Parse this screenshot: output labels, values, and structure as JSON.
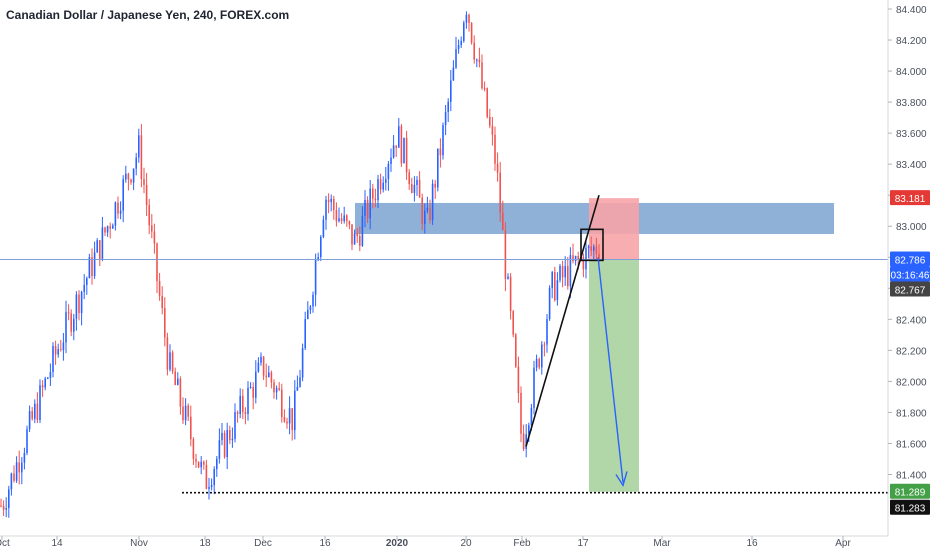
{
  "title": "Canadian Dollar / Japanese Yen, 240, FOREX.com",
  "chart_data": {
    "type": "candlestick",
    "symbol": "Canadian Dollar / Japanese Yen",
    "interval": "240",
    "source": "FOREX.com",
    "ylim": [
      81.18,
      84.5
    ],
    "y_ticks": [
      "84.400",
      "84.200",
      "84.000",
      "83.800",
      "83.600",
      "83.400",
      "83.200",
      "83.000",
      "82.800",
      "82.600",
      "82.400",
      "82.200",
      "82.000",
      "81.800",
      "81.600",
      "81.400"
    ],
    "x_ticks": [
      "Oct",
      "14",
      "Nov",
      "18",
      "Dec",
      "16",
      "2020",
      "20",
      "Feb",
      "17",
      "Mar",
      "16",
      "Apr"
    ],
    "price_path": [
      [
        "Oct",
        81.2
      ],
      [
        "14",
        82.2
      ],
      [
        "Nov",
        83.5
      ],
      [
        "Nov+",
        82.1
      ],
      [
        "18",
        81.35
      ],
      [
        "Dec",
        82.1
      ],
      [
        "Dec+",
        81.75
      ],
      [
        "16",
        83.2
      ],
      [
        "16+",
        82.9
      ],
      [
        "2020",
        83.6
      ],
      [
        "2020+",
        83.0
      ],
      [
        "20",
        84.45
      ],
      [
        "20+",
        83.4
      ],
      [
        "Feb",
        81.6
      ],
      [
        "Feb+",
        82.6
      ],
      [
        "17",
        82.8
      ],
      [
        "17+",
        82.95
      ]
    ],
    "price_labels": [
      {
        "text": "83.181",
        "color": "#e53935"
      },
      {
        "text": "82.786",
        "color": "#2962ff"
      },
      {
        "text": "03:16:46",
        "color": "#2962ff"
      },
      {
        "text": "82.767",
        "color": "#444444"
      },
      {
        "text": "81.289",
        "color": "#43a047"
      },
      {
        "text": "81.283",
        "color": "#111111"
      }
    ],
    "annotations": {
      "resistance_zone": {
        "from": 82.95,
        "to": 83.15,
        "color": "#6b97c9"
      },
      "short_position": {
        "entry": 82.786,
        "stop": 83.181,
        "target": 81.289
      },
      "support_level": 81.283,
      "trendline": {
        "from": [
          "Feb",
          81.58
        ],
        "to": [
          "17",
          83.2
        ]
      }
    },
    "colors": {
      "up": "#2962ff",
      "down": "#ef5350",
      "loss": "#f7a4a8",
      "profit": "#a9d39e"
    }
  }
}
